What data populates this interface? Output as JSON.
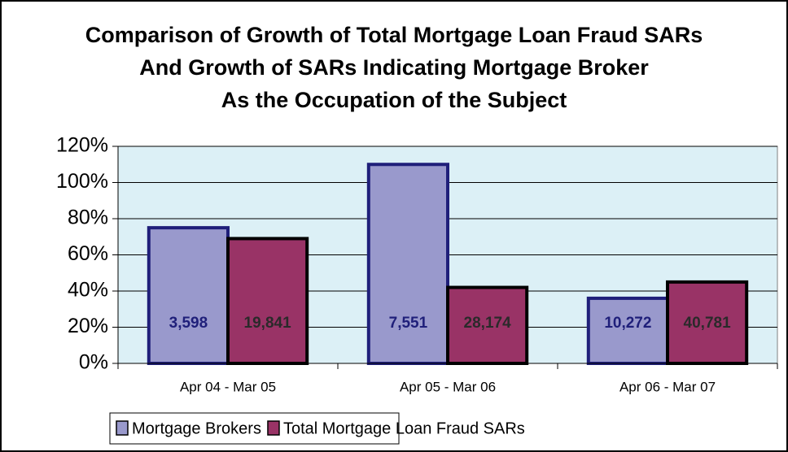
{
  "chart_data": {
    "type": "bar",
    "title": [
      "Comparison of Growth of Total Mortgage Loan Fraud SARs",
      "And Growth of SARs Indicating Mortgage Broker",
      "As the Occupation of the Subject"
    ],
    "categories": [
      "Apr 04 - Mar 05",
      "Apr 05 - Mar 06",
      "Apr 06 - Mar 07"
    ],
    "series": [
      {
        "name": "Mortgage Brokers",
        "color": "#9999cc",
        "border": "#1f1f7a",
        "values": [
          75,
          110,
          36
        ],
        "labels": [
          "3,598",
          "7,551",
          "10,272"
        ]
      },
      {
        "name": "Total Mortgage Loan Fraud SARs",
        "color": "#993366",
        "border": "#000000",
        "values": [
          69,
          42,
          45
        ],
        "labels": [
          "19,841",
          "28,174",
          "40,781"
        ]
      }
    ],
    "ylim": [
      0,
      120
    ],
    "yticks": [
      {
        "value": 0,
        "label": "0%"
      },
      {
        "value": 20,
        "label": "20%"
      },
      {
        "value": 40,
        "label": "40%"
      },
      {
        "value": 60,
        "label": "60%"
      },
      {
        "value": 80,
        "label": "80%"
      },
      {
        "value": 100,
        "label": "100%"
      },
      {
        "value": 120,
        "label": "120%"
      }
    ],
    "grid": true,
    "background": "#dcf0f6"
  }
}
